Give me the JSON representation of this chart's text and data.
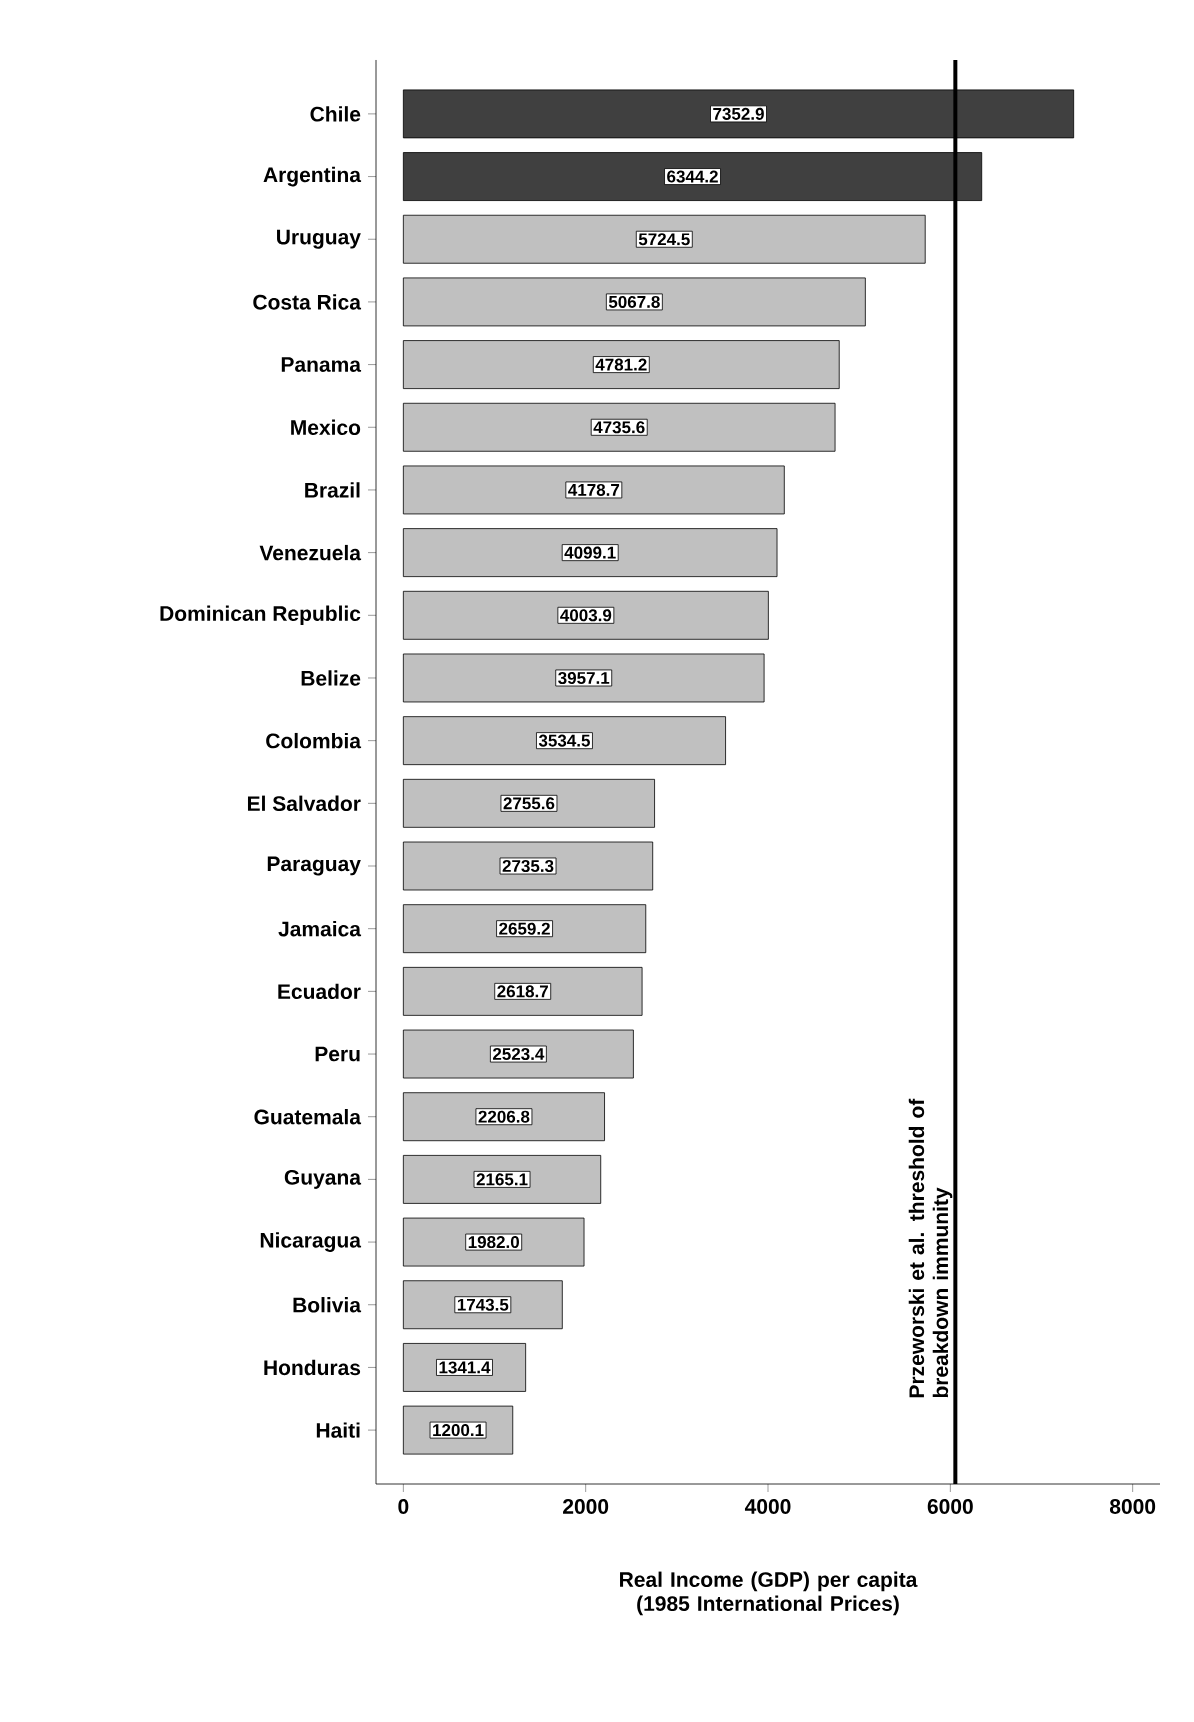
{
  "chart_data": {
    "type": "bar",
    "orientation": "horizontal",
    "categories": [
      "Chile",
      "Argentina",
      "Uruguay",
      "Costa Rica",
      "Panama",
      "Mexico",
      "Brazil",
      "Venezuela",
      "Dominican Republic",
      "Belize",
      "Colombia",
      "El Salvador",
      "Paraguay",
      "Jamaica",
      "Ecuador",
      "Peru",
      "Guatemala",
      "Guyana",
      "Nicaragua",
      "Bolivia",
      "Honduras",
      "Haiti"
    ],
    "values": [
      7352.9,
      6344.2,
      5724.5,
      5067.8,
      4781.2,
      4735.6,
      4178.7,
      4099.1,
      4003.9,
      3957.1,
      3534.5,
      2755.6,
      2735.3,
      2659.2,
      2618.7,
      2523.4,
      2206.8,
      2165.1,
      1982.0,
      1743.5,
      1341.4,
      1200.1
    ],
    "colors": [
      "#404040",
      "#404040",
      "#c0c0c0",
      "#c0c0c0",
      "#c0c0c0",
      "#c0c0c0",
      "#c0c0c0",
      "#c0c0c0",
      "#c0c0c0",
      "#c0c0c0",
      "#c0c0c0",
      "#c0c0c0",
      "#c0c0c0",
      "#c0c0c0",
      "#c0c0c0",
      "#c0c0c0",
      "#c0c0c0",
      "#c0c0c0",
      "#c0c0c0",
      "#c0c0c0",
      "#c0c0c0",
      "#c0c0c0"
    ],
    "xlim": [
      -300,
      8300
    ],
    "xticks": [
      0,
      2000,
      4000,
      6000,
      8000
    ],
    "xlabel": "Real Income (GDP) per capita (1985 International Prices)",
    "value_labels": [
      "7352.9",
      "6344.2",
      "5724.5",
      "5067.8",
      "4781.2",
      "4735.6",
      "4178.7",
      "4099.1",
      "4003.9",
      "3957.1",
      "3534.5",
      "2755.6",
      "2735.3",
      "2659.2",
      "2618.7",
      "2523.4",
      "2206.8",
      "2165.1",
      "1982.0",
      "1743.5",
      "1341.4",
      "1200.1"
    ],
    "ref_lines": [
      {
        "axis": "x",
        "value": 6055,
        "label": "Przeworski et al. threshold of breakdown immunity",
        "color": "#000000"
      }
    ]
  }
}
